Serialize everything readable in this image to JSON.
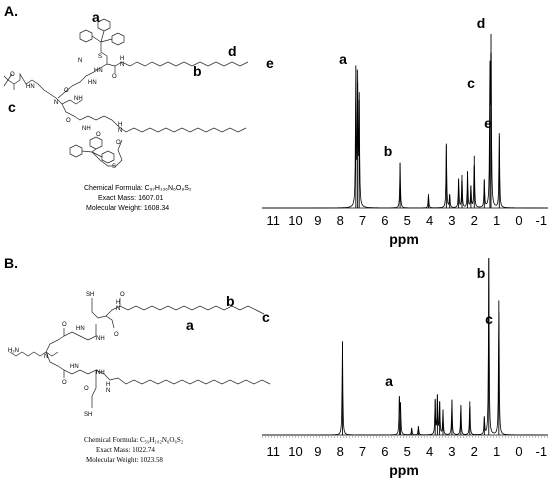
{
  "figure": {
    "panels": [
      {
        "label": "A.",
        "molecule": {
          "formula": "Chemical Formula: C₉₇H₁₃₆N₆O₈S₂",
          "exact_mass": "Exact Mass: 1607.01",
          "molecular_weight": "Molecular Weight: 1608.34",
          "atom_labels": [
            "O",
            "HN",
            "N",
            "HN",
            "NH",
            "O",
            "O",
            "NH",
            "O",
            "HN",
            "N",
            "S",
            "S",
            "H",
            "N",
            "O",
            "H",
            "N",
            "O"
          ],
          "structure_labels": [
            "a",
            "b",
            "c",
            "d",
            "e"
          ]
        },
        "spectrum": {
          "xlabel": "ppm",
          "ticks": [
            "11",
            "10",
            "9",
            "8",
            "7",
            "6",
            "5",
            "4",
            "3",
            "2",
            "1",
            "0",
            "-1"
          ],
          "peak_labels": [
            "a",
            "b",
            "c",
            "d",
            "e"
          ]
        }
      },
      {
        "label": "B.",
        "molecule": {
          "formula": "Chemical Formula: C₅₉H₁₀₂N₆O₆S₂",
          "exact_mass": "Exact Mass: 1022.74",
          "molecular_weight": "Molecular Weight: 1023.58",
          "atom_labels": [
            "SH",
            "H₂N",
            "N",
            "HN",
            "NH",
            "O",
            "O",
            "NH",
            "O",
            "HN",
            "SH",
            "O",
            "H",
            "N",
            "O",
            "H",
            "N"
          ],
          "structure_labels": [
            "a",
            "b",
            "c"
          ]
        },
        "spectrum": {
          "xlabel": "ppm",
          "ticks": [
            "11",
            "10",
            "9",
            "8",
            "7",
            "6",
            "5",
            "4",
            "3",
            "2",
            "1",
            "0",
            "-1"
          ],
          "peak_labels": [
            "a",
            "b",
            "c"
          ]
        }
      }
    ]
  },
  "chart_data": [
    {
      "type": "line",
      "title": "",
      "xlabel": "ppm",
      "ylabel": "",
      "xlim": [
        11.5,
        -1.3
      ],
      "x_reversed": true,
      "ticks": [
        11,
        10,
        9,
        8,
        7,
        6,
        5,
        4,
        3,
        2,
        1,
        0,
        -1
      ],
      "peaks": [
        {
          "ppm": 7.3,
          "height": 0.82,
          "label": "a"
        },
        {
          "ppm": 7.22,
          "height": 0.72
        },
        {
          "ppm": 7.15,
          "height": 0.62
        },
        {
          "ppm": 5.32,
          "height": 0.26,
          "label": "b"
        },
        {
          "ppm": 4.05,
          "height": 0.08
        },
        {
          "ppm": 3.25,
          "height": 0.37
        },
        {
          "ppm": 3.1,
          "height": 0.08
        },
        {
          "ppm": 2.7,
          "height": 0.17
        },
        {
          "ppm": 2.55,
          "height": 0.19
        },
        {
          "ppm": 2.3,
          "height": 0.21
        },
        {
          "ppm": 2.15,
          "height": 0.13
        },
        {
          "ppm": 2.0,
          "height": 0.3
        },
        {
          "ppm": 1.55,
          "height": 0.16
        },
        {
          "ppm": 1.3,
          "height": 0.74,
          "label": "c"
        },
        {
          "ppm": 1.25,
          "height": 1.0,
          "label": "d"
        },
        {
          "ppm": 0.88,
          "height": 0.43,
          "label": "e"
        }
      ]
    },
    {
      "type": "line",
      "title": "",
      "xlabel": "ppm",
      "ylabel": "",
      "xlim": [
        11.5,
        -1.3
      ],
      "x_reversed": true,
      "ticks": [
        11,
        10,
        9,
        8,
        7,
        6,
        5,
        4,
        3,
        2,
        1,
        0,
        -1
      ],
      "peaks": [
        {
          "ppm": 7.9,
          "height": 0.53
        },
        {
          "ppm": 5.35,
          "height": 0.22,
          "label": "a"
        },
        {
          "ppm": 5.3,
          "height": 0.16
        },
        {
          "ppm": 4.8,
          "height": 0.04
        },
        {
          "ppm": 4.5,
          "height": 0.05
        },
        {
          "ppm": 3.75,
          "height": 0.2
        },
        {
          "ppm": 3.65,
          "height": 0.23
        },
        {
          "ppm": 3.55,
          "height": 0.19
        },
        {
          "ppm": 3.4,
          "height": 0.14
        },
        {
          "ppm": 3.0,
          "height": 0.2
        },
        {
          "ppm": 2.6,
          "height": 0.17
        },
        {
          "ppm": 2.2,
          "height": 0.19
        },
        {
          "ppm": 1.55,
          "height": 0.1
        },
        {
          "ppm": 1.35,
          "height": 1.0,
          "label": "b"
        },
        {
          "ppm": 0.9,
          "height": 0.76,
          "label": "c"
        }
      ]
    }
  ]
}
